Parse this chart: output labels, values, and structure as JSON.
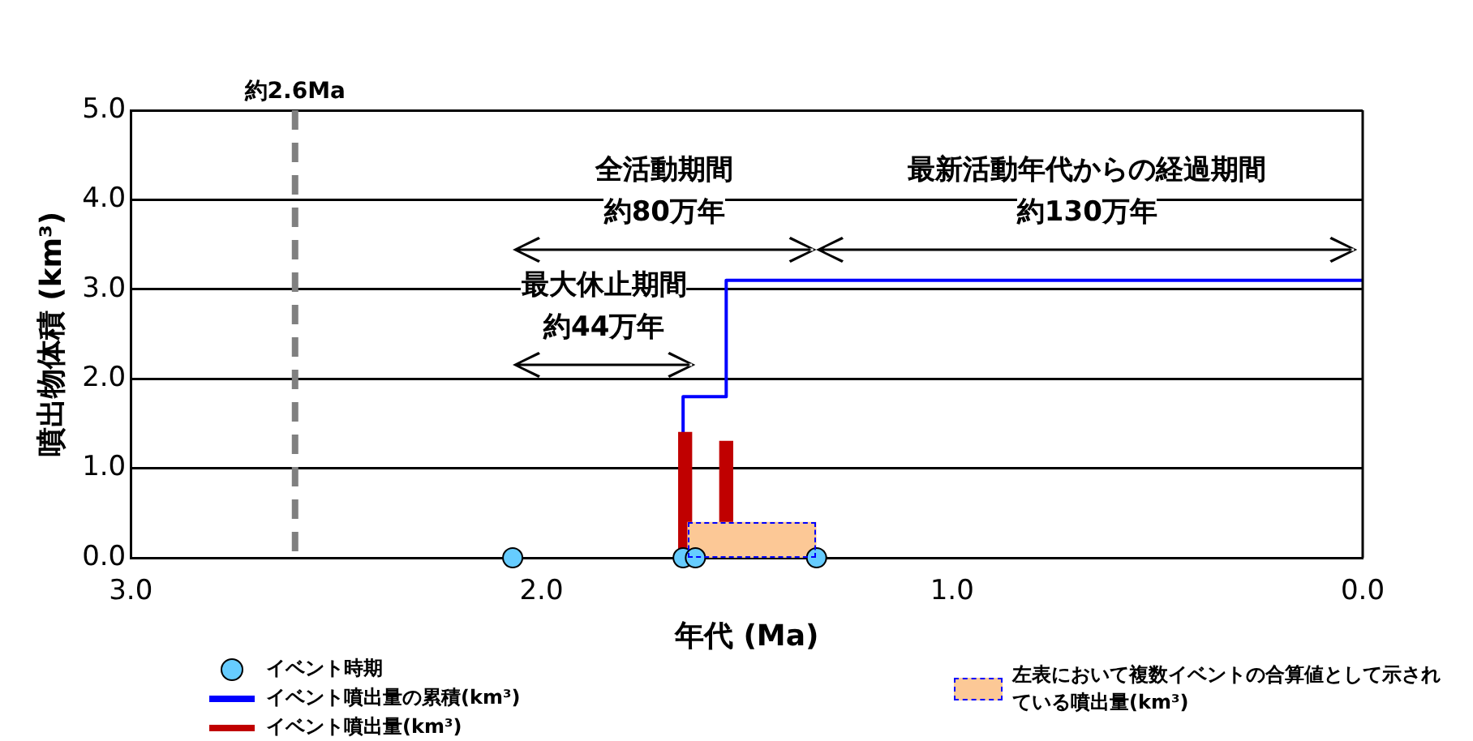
{
  "chart_data": {
    "type": "scatter",
    "xlabel": "年代 (Ma)",
    "ylabel": "噴出物体積 (km³)",
    "xlim": [
      3,
      0
    ],
    "xticks": [
      {
        "value": 3,
        "label": "3.0"
      },
      {
        "value": 2,
        "label": "2.0"
      },
      {
        "value": 1,
        "label": "1.0"
      },
      {
        "value": 0,
        "label": "0.0"
      }
    ],
    "ylim": [
      0,
      5
    ],
    "yticks": [
      {
        "value": 0,
        "label": "0.0"
      },
      {
        "value": 1,
        "label": "1.0"
      },
      {
        "value": 2,
        "label": "2.0"
      },
      {
        "value": 3,
        "label": "3.0"
      },
      {
        "value": 4,
        "label": "4.0"
      },
      {
        "value": 5,
        "label": "5.0"
      }
    ],
    "grid": "y",
    "legend": "bottom",
    "series": [
      {
        "name": "イベント時期",
        "marker": "circle",
        "color": "#66ccff",
        "x": [
          2.07,
          1.655,
          1.625,
          1.33
        ],
        "values": [
          0,
          0,
          0,
          0
        ]
      },
      {
        "name": "イベント噴出量の累積(km³)",
        "type": "line",
        "color": "#0000ff",
        "x": [
          1.655,
          1.655,
          1.55,
          1.55,
          0
        ],
        "values": [
          1.4,
          1.8,
          1.8,
          3.1,
          3.1
        ]
      },
      {
        "name": "イベント噴出量(km³)",
        "type": "bar",
        "color": "#c00000",
        "x": [
          1.65,
          1.55
        ],
        "values": [
          1.4,
          1.3
        ]
      },
      {
        "name": "左表において複数イベントの合算値として示されている噴出量(km³)",
        "type": "area",
        "line_style": "dashed",
        "color": "#fcc896",
        "x": [
          1.645,
          1.33
        ],
        "values": [
          0.4,
          0.4
        ]
      }
    ],
    "ref_lines": [
      {
        "axis": "x",
        "value": 2.6,
        "label": "約2.6Ma",
        "color": "#808080",
        "line_style": "dashed"
      }
    ],
    "annotations": [
      "全活動期間",
      "約80万年",
      "最新活動年代からの経過期間",
      "約130万年",
      "最大休止期間",
      "約44万年"
    ]
  }
}
